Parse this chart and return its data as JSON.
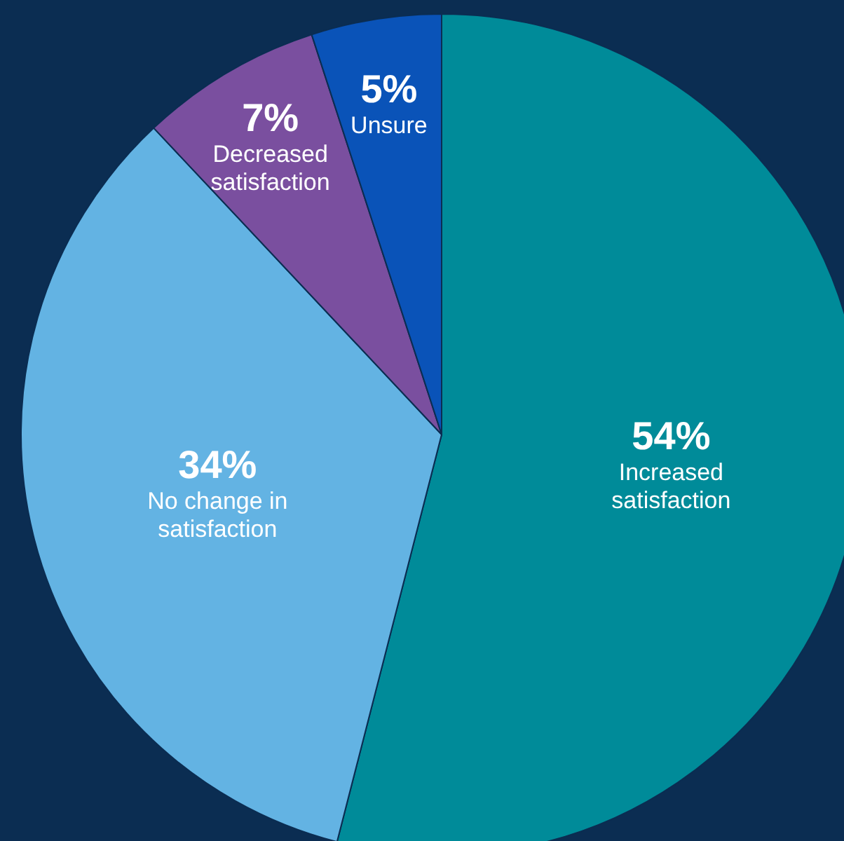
{
  "chart_data": {
    "type": "pie",
    "categories": [
      "Increased satisfaction",
      "No change in satisfaction",
      "Decreased satisfaction",
      "Unsure"
    ],
    "values": [
      54,
      34,
      7,
      5
    ],
    "value_labels": [
      "54%",
      "34%",
      "7%",
      "5%"
    ],
    "colors": [
      "#008b99",
      "#63b3e3",
      "#7a4f9f",
      "#0a53b8"
    ]
  }
}
